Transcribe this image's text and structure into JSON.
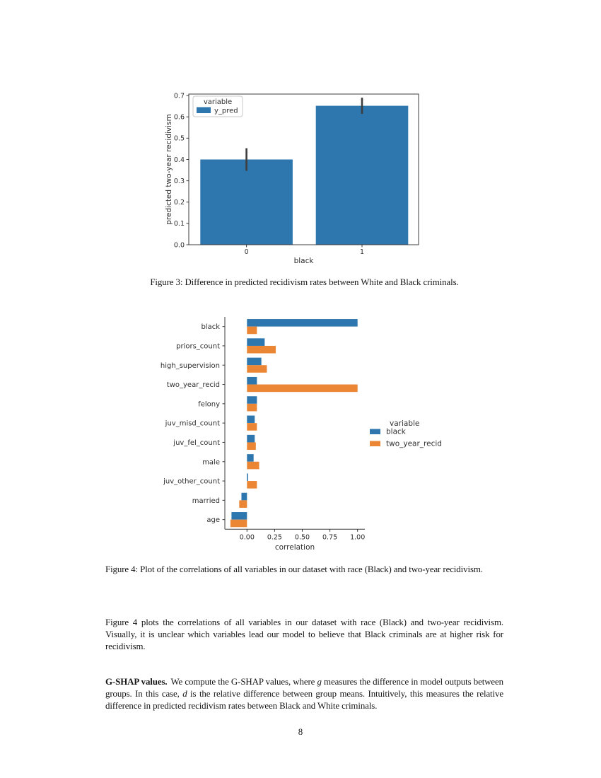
{
  "page_number": "8",
  "colors": {
    "blue": "#2e76ae",
    "orange": "#ea8634",
    "error_bar": "#3d3d3d",
    "axis": "#3c3c3c"
  },
  "chart_data": [
    {
      "id": "figure3",
      "type": "bar",
      "title": "",
      "xlabel": "black",
      "ylabel": "predicted two-year recidivism",
      "categories": [
        "0",
        "1"
      ],
      "values": [
        0.4,
        0.652
      ],
      "errors": [
        0.053,
        0.038
      ],
      "yticks": [
        "0.0",
        "0.1",
        "0.2",
        "0.3",
        "0.4",
        "0.5",
        "0.6",
        "0.7"
      ],
      "ylim": [
        0,
        0.707
      ],
      "grid": "off",
      "legend": {
        "position": "upper-left-inside-framed",
        "title": "variable",
        "entries": [
          {
            "label": "y_pred",
            "color_key": "blue"
          }
        ]
      }
    },
    {
      "id": "figure4",
      "type": "bar-horizontal",
      "title": "",
      "xlabel": "correlation",
      "ylabel": "",
      "categories": [
        "black",
        "priors_count",
        "high_supervision",
        "two_year_recid",
        "felony",
        "juv_misd_count",
        "juv_fel_count",
        "male",
        "juv_other_count",
        "married",
        "age"
      ],
      "series": [
        {
          "name": "black",
          "color_key": "blue",
          "values": [
            1.0,
            0.16,
            0.13,
            0.09,
            0.09,
            0.07,
            0.07,
            0.06,
            0.01,
            -0.05,
            -0.14
          ]
        },
        {
          "name": "two_year_recid",
          "color_key": "orange",
          "values": [
            0.09,
            0.26,
            0.18,
            1.0,
            0.09,
            0.09,
            0.08,
            0.11,
            0.09,
            -0.07,
            -0.15
          ]
        }
      ],
      "xticks": [
        0,
        0.25,
        0.5,
        0.75,
        1.0
      ],
      "xtick_labels": [
        "0.00",
        "0.25",
        "0.50",
        "0.75",
        "1.00"
      ],
      "xlim": [
        -0.2,
        1.066
      ],
      "grid": "off",
      "legend": {
        "position": "right-outside-frameless",
        "title": "variable",
        "entries": [
          {
            "label": "black",
            "color_key": "blue"
          },
          {
            "label": "two_year_recid",
            "color_key": "orange"
          }
        ]
      }
    }
  ],
  "captions": {
    "fig3": "Figure 3: Difference in predicted recidivism rates between White and Black criminals.",
    "fig4": "Figure 4: Plot of the correlations of all variables in our dataset with race (Black) and two-year recidivism."
  },
  "paragraphs": {
    "p1": "Figure 4 plots the correlations of all variables in our dataset with race (Black) and two-year recidivism. Visually, it is unclear which variables lead our model to believe that Black criminals are at higher risk for recidivism.",
    "gshap_segments": [
      {
        "t": "G-SHAP values.",
        "s": "b"
      },
      {
        "t": "We compute the G-SHAP values, where ",
        "s": ""
      },
      {
        "t": "g",
        "s": "i"
      },
      {
        "t": " measures the difference in model outputs between groups. In this case, ",
        "s": ""
      },
      {
        "t": "d",
        "s": "i"
      },
      {
        "t": " is the relative difference between group means. Intuitively, this measures the relative difference in predicted recidivism rates between Black and White criminals.",
        "s": ""
      }
    ]
  }
}
